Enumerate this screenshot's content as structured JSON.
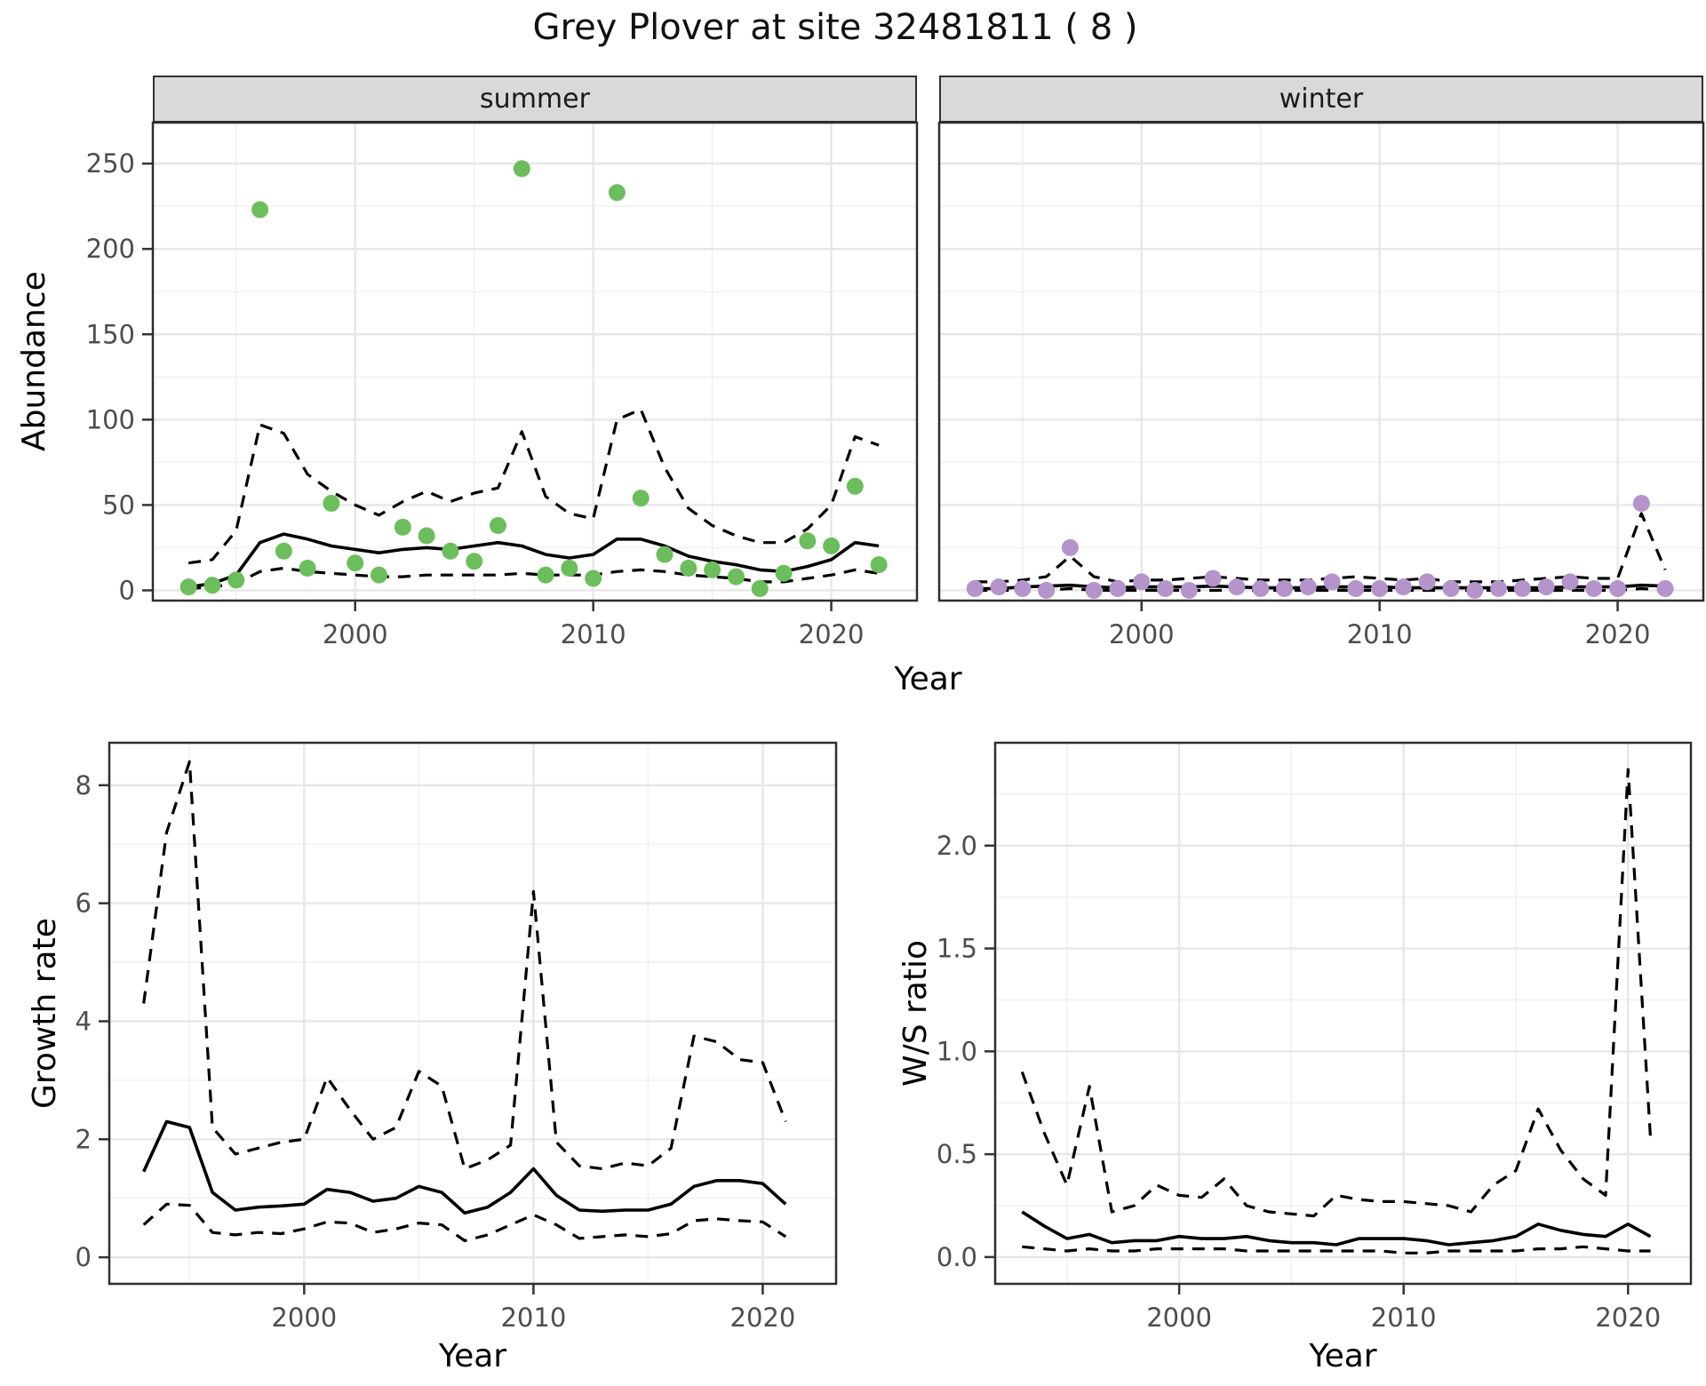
{
  "title": "Grey Plover at site 32481811 ( 8 )",
  "colors": {
    "point_summer": "#6BBE5B",
    "point_winter": "#B494CB",
    "line": "#000000",
    "grid_major": "#E7E7E7",
    "grid_minor": "#F2F2F2",
    "strip_bg": "#D9D9D9",
    "panel_border": "#2E2E2E",
    "tick_text": "#4D4D4D",
    "background": "#FFFFFF"
  },
  "chart_data": [
    {
      "type": "scatter",
      "xlabel": "Year",
      "ylabel": "Abundance",
      "facet_labels": [
        "summer",
        "winter"
      ],
      "xlim": [
        1991.5,
        2023.6
      ],
      "ylim": [
        -6,
        274
      ],
      "xticks": [
        2000,
        2010,
        2020
      ],
      "xtick_labels": [
        "2000",
        "2010",
        "2020"
      ],
      "xminor": [
        1995,
        2005,
        2015
      ],
      "yticks": [
        0,
        50,
        100,
        150,
        200,
        250
      ],
      "ytick_labels": [
        "0",
        "50",
        "100",
        "150",
        "200",
        "250"
      ],
      "yminor": [
        25,
        75,
        125,
        175,
        225
      ],
      "grid": true,
      "legend_position": "none",
      "years": [
        1993,
        1994,
        1995,
        1996,
        1997,
        1998,
        1999,
        2000,
        2001,
        2002,
        2003,
        2004,
        2005,
        2006,
        2007,
        2008,
        2009,
        2010,
        2011,
        2012,
        2013,
        2014,
        2015,
        2016,
        2017,
        2018,
        2019,
        2020,
        2021,
        2022
      ],
      "facets": [
        {
          "label": "summer",
          "point_color": "#6BBE5B",
          "observed": [
            2,
            3,
            6,
            223,
            23,
            13,
            51,
            16,
            9,
            37,
            32,
            23,
            17,
            38,
            247,
            9,
            13,
            7,
            233,
            54,
            21,
            13,
            12,
            8,
            1,
            10,
            29,
            26,
            61,
            15
          ],
          "fitted": [
            2,
            4,
            9,
            28,
            33,
            30,
            26,
            24,
            22,
            24,
            25,
            24,
            26,
            28,
            26,
            21,
            19,
            21,
            30,
            30,
            26,
            20,
            17,
            15,
            12,
            11,
            14,
            18,
            28,
            26
          ],
          "upper_ci": [
            16,
            18,
            35,
            97,
            92,
            68,
            58,
            50,
            44,
            52,
            58,
            52,
            57,
            60,
            93,
            55,
            45,
            42,
            100,
            106,
            72,
            48,
            38,
            32,
            28,
            28,
            36,
            50,
            90,
            85
          ],
          "lower_ci": [
            1,
            2,
            4,
            11,
            13,
            11,
            10,
            9,
            8,
            8,
            9,
            9,
            9,
            9,
            10,
            9,
            9,
            9,
            11,
            12,
            11,
            9,
            8,
            7,
            5,
            5,
            7,
            9,
            12,
            10
          ]
        },
        {
          "label": "winter",
          "point_color": "#B494CB",
          "observed": [
            1,
            2,
            1,
            0,
            25,
            0,
            1,
            5,
            1,
            0,
            7,
            2,
            1,
            1,
            2,
            5,
            1,
            1,
            2,
            5,
            1,
            0,
            1,
            1,
            2,
            5,
            1,
            1,
            51,
            1
          ],
          "fitted": [
            1,
            1,
            2,
            2.5,
            3,
            2,
            1.5,
            2,
            2,
            2,
            2.5,
            2,
            1.5,
            1.5,
            1.5,
            2,
            2,
            2,
            1.5,
            1.5,
            1.5,
            1.5,
            1.5,
            1.5,
            1.5,
            2,
            2,
            2,
            3,
            2.5
          ],
          "upper_ci": [
            5,
            5,
            6,
            8,
            20,
            8,
            5,
            6,
            6,
            7,
            8,
            7,
            6,
            6,
            6,
            7,
            8,
            7,
            6,
            7,
            5,
            5,
            5,
            6,
            7,
            8,
            7,
            7,
            45,
            12
          ],
          "lower_ci": [
            0,
            0,
            0,
            0,
            1,
            0,
            0,
            0,
            0,
            0,
            0,
            0,
            0,
            0,
            0,
            0,
            0,
            0,
            0,
            0,
            0,
            0,
            0,
            0,
            0,
            0,
            0,
            0,
            1,
            0
          ]
        }
      ]
    },
    {
      "type": "line",
      "xlabel": "Year",
      "ylabel": "Growth rate",
      "xlim": [
        1991.5,
        2023.2
      ],
      "ylim": [
        -0.45,
        8.72
      ],
      "xticks": [
        2000,
        2010,
        2020
      ],
      "xtick_labels": [
        "2000",
        "2010",
        "2020"
      ],
      "xminor": [
        1995,
        2005,
        2015
      ],
      "yticks": [
        0,
        2,
        4,
        6,
        8
      ],
      "ytick_labels": [
        "0",
        "2",
        "4",
        "6",
        "8"
      ],
      "yminor": [
        1,
        3,
        5,
        7
      ],
      "grid": true,
      "legend_position": "none",
      "years": [
        1993,
        1994,
        1995,
        1996,
        1997,
        1998,
        1999,
        2000,
        2001,
        2002,
        2003,
        2004,
        2005,
        2006,
        2007,
        2008,
        2009,
        2010,
        2011,
        2012,
        2013,
        2014,
        2015,
        2016,
        2017,
        2018,
        2019,
        2020,
        2021
      ],
      "series": [
        {
          "name": "fitted",
          "style": "solid",
          "values": [
            1.45,
            2.3,
            2.2,
            1.1,
            0.8,
            0.85,
            0.87,
            0.9,
            1.15,
            1.1,
            0.95,
            1.0,
            1.2,
            1.1,
            0.75,
            0.85,
            1.1,
            1.5,
            1.05,
            0.8,
            0.78,
            0.8,
            0.8,
            0.9,
            1.2,
            1.3,
            1.3,
            1.25,
            0.9
          ]
        },
        {
          "name": "upper_ci",
          "style": "dashed",
          "values": [
            4.3,
            7.2,
            8.4,
            2.2,
            1.75,
            1.85,
            1.95,
            2.0,
            3.05,
            2.5,
            2.0,
            2.2,
            3.15,
            2.9,
            1.5,
            1.65,
            1.9,
            6.2,
            1.95,
            1.55,
            1.5,
            1.6,
            1.55,
            1.85,
            3.75,
            3.65,
            3.35,
            3.3,
            2.3
          ]
        },
        {
          "name": "lower_ci",
          "style": "dashed",
          "values": [
            0.55,
            0.9,
            0.88,
            0.42,
            0.38,
            0.42,
            0.4,
            0.48,
            0.6,
            0.58,
            0.42,
            0.48,
            0.58,
            0.55,
            0.28,
            0.38,
            0.55,
            0.72,
            0.55,
            0.32,
            0.35,
            0.38,
            0.35,
            0.4,
            0.62,
            0.65,
            0.62,
            0.6,
            0.35
          ]
        }
      ]
    },
    {
      "type": "line",
      "xlabel": "Year",
      "ylabel": "W/S ratio",
      "xlim": [
        1991.8,
        2022.8
      ],
      "ylim": [
        -0.13,
        2.5
      ],
      "xticks": [
        2000,
        2010,
        2020
      ],
      "xtick_labels": [
        "2000",
        "2010",
        "2020"
      ],
      "xminor": [
        1995,
        2005,
        2015
      ],
      "yticks": [
        0.0,
        0.5,
        1.0,
        1.5,
        2.0
      ],
      "ytick_labels": [
        "0.0",
        "0.5",
        "1.0",
        "1.5",
        "2.0"
      ],
      "yminor": [
        0.25,
        0.75,
        1.25,
        1.75,
        2.25
      ],
      "grid": true,
      "legend_position": "none",
      "years": [
        1993,
        1994,
        1995,
        1996,
        1997,
        1998,
        1999,
        2000,
        2001,
        2002,
        2003,
        2004,
        2005,
        2006,
        2007,
        2008,
        2009,
        2010,
        2011,
        2012,
        2013,
        2014,
        2015,
        2016,
        2017,
        2018,
        2019,
        2020,
        2021
      ],
      "series": [
        {
          "name": "fitted",
          "style": "solid",
          "values": [
            0.22,
            0.15,
            0.09,
            0.11,
            0.07,
            0.08,
            0.08,
            0.1,
            0.09,
            0.09,
            0.1,
            0.08,
            0.07,
            0.07,
            0.06,
            0.09,
            0.09,
            0.09,
            0.08,
            0.06,
            0.07,
            0.08,
            0.1,
            0.16,
            0.13,
            0.11,
            0.1,
            0.16,
            0.1
          ]
        },
        {
          "name": "upper_ci",
          "style": "dashed",
          "values": [
            0.9,
            0.6,
            0.35,
            0.83,
            0.22,
            0.25,
            0.35,
            0.3,
            0.29,
            0.38,
            0.25,
            0.22,
            0.21,
            0.2,
            0.3,
            0.28,
            0.27,
            0.27,
            0.26,
            0.25,
            0.22,
            0.35,
            0.42,
            0.72,
            0.52,
            0.38,
            0.3,
            2.37,
            0.58
          ]
        },
        {
          "name": "lower_ci",
          "style": "dashed",
          "values": [
            0.05,
            0.04,
            0.03,
            0.04,
            0.03,
            0.03,
            0.04,
            0.04,
            0.04,
            0.04,
            0.03,
            0.03,
            0.03,
            0.03,
            0.03,
            0.03,
            0.03,
            0.02,
            0.02,
            0.03,
            0.03,
            0.03,
            0.03,
            0.04,
            0.04,
            0.05,
            0.04,
            0.03,
            0.03
          ]
        }
      ]
    }
  ]
}
